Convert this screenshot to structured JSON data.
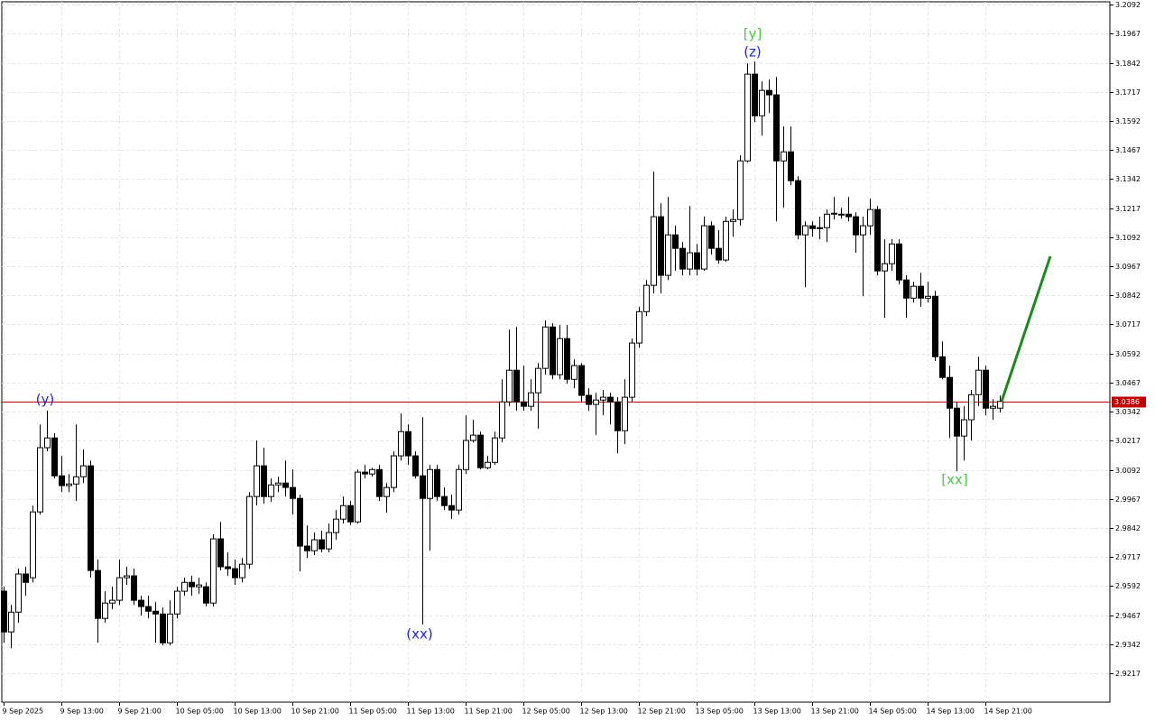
{
  "chart_data": {
    "type": "candlestick",
    "ylim": [
      2.9093,
      3.2104
    ],
    "yticks": [
      3.2092,
      3.1967,
      3.1842,
      3.1717,
      3.1592,
      3.1467,
      3.1342,
      3.1217,
      3.1092,
      3.0967,
      3.0842,
      3.0717,
      3.0592,
      3.0467,
      3.0342,
      3.0217,
      3.0092,
      2.9967,
      2.9842,
      2.9717,
      2.9592,
      2.9467,
      2.9342,
      2.9217
    ],
    "grid": true,
    "up_color": "#ffffff",
    "down_color": "#000000",
    "current_price": 3.0386,
    "current_price_color": "#c00000",
    "projection": {
      "values": [
        3.0386,
        3.101
      ],
      "color": "#1a8a1a"
    },
    "annotations": [
      {
        "text": "(y)",
        "color": "#2222dd"
      },
      {
        "text": "[y]",
        "color": "#44cc44"
      },
      {
        "text": "(z)",
        "color": "#2222dd"
      },
      {
        "text": "(xx)",
        "color": "#2222dd"
      },
      {
        "text": "[xx]",
        "color": "#44cc44"
      }
    ],
    "categories": [
      "9 Sep 2025",
      null,
      null,
      null,
      null,
      null,
      null,
      null,
      "9 Sep 13:00",
      null,
      null,
      null,
      null,
      null,
      null,
      null,
      "9 Sep 21:00",
      null,
      null,
      null,
      null,
      null,
      null,
      null,
      "10 Sep 05:00",
      null,
      null,
      null,
      null,
      null,
      null,
      null,
      "10 Sep 13:00",
      null,
      null,
      null,
      null,
      null,
      null,
      null,
      "10 Sep 21:00",
      null,
      null,
      null,
      null,
      null,
      null,
      null,
      "11 Sep 05:00",
      null,
      null,
      null,
      null,
      null,
      null,
      null,
      "11 Sep 13:00",
      null,
      null,
      null,
      null,
      null,
      null,
      null,
      "11 Sep 21:00",
      null,
      null,
      null,
      null,
      null,
      null,
      null,
      "12 Sep 05:00",
      null,
      null,
      null,
      null,
      null,
      null,
      null,
      "12 Sep 13:00",
      null,
      null,
      null,
      null,
      null,
      null,
      null,
      "12 Sep 21:00",
      null,
      null,
      null,
      null,
      null,
      null,
      null,
      "13 Sep 05:00",
      null,
      null,
      null,
      null,
      null,
      null,
      null,
      "13 Sep 13:00",
      null,
      null,
      null,
      null,
      null,
      null,
      null,
      "13 Sep 21:00",
      null,
      null,
      null,
      null,
      null,
      null,
      null,
      "14 Sep 05:00",
      null,
      null,
      null,
      null,
      null,
      null,
      null,
      "14 Sep 13:00",
      null,
      null,
      null,
      null,
      null,
      null,
      null,
      "14 Sep 21:00",
      null,
      null
    ],
    "ohlc": [
      [
        2.957,
        2.9589,
        2.9348,
        2.9395
      ],
      [
        2.9395,
        2.9511,
        2.9325,
        2.948
      ],
      [
        2.948,
        2.9667,
        2.9434,
        2.9644
      ],
      [
        2.9644,
        2.9675,
        2.955,
        2.9608
      ],
      [
        2.9628,
        2.9938,
        2.9608,
        2.9911
      ],
      [
        2.9911,
        3.0287,
        2.9899,
        3.0187
      ],
      [
        3.0187,
        3.0346,
        3.0171,
        3.0229
      ],
      [
        3.0229,
        3.0249,
        3.0055,
        3.0066
      ],
      [
        3.0066,
        3.0152,
        2.9996,
        3.0024
      ],
      [
        3.0024,
        3.0074,
        2.9996,
        3.0031
      ],
      [
        3.0031,
        3.0287,
        2.9958,
        3.0062
      ],
      [
        3.0062,
        3.0179,
        3.0035,
        3.0109
      ],
      [
        3.0109,
        3.0132,
        2.9628,
        2.9659
      ],
      [
        2.9659,
        2.9706,
        2.9348,
        2.9453
      ],
      [
        2.9453,
        2.957,
        2.9434,
        2.9519
      ],
      [
        2.9519,
        2.9589,
        2.9492,
        2.9531
      ],
      [
        2.9531,
        2.9706,
        2.9511,
        2.9628
      ],
      [
        2.9628,
        2.9675,
        2.9597,
        2.9636
      ],
      [
        2.9636,
        2.9667,
        2.9511,
        2.9531
      ],
      [
        2.9531,
        2.955,
        2.9465,
        2.9504
      ],
      [
        2.9504,
        2.955,
        2.9453,
        2.9484
      ],
      [
        2.9484,
        2.9523,
        2.9348,
        2.9472
      ],
      [
        2.9472,
        2.95,
        2.9337,
        2.9348
      ],
      [
        2.9348,
        2.9531,
        2.9337,
        2.9472
      ],
      [
        2.9472,
        2.9589,
        2.9453,
        2.957
      ],
      [
        2.957,
        2.9628,
        2.955,
        2.9608
      ],
      [
        2.9608,
        2.9636,
        2.955,
        2.9589
      ],
      [
        2.9589,
        2.9628,
        2.9558,
        2.9597
      ],
      [
        2.9589,
        2.9608,
        2.9504,
        2.9519
      ],
      [
        2.9519,
        2.9814,
        2.9504,
        2.9795
      ],
      [
        2.9795,
        2.9868,
        2.9659,
        2.9675
      ],
      [
        2.9675,
        2.9737,
        2.9636,
        2.9667
      ],
      [
        2.9667,
        2.9706,
        2.9597,
        2.9628
      ],
      [
        2.9628,
        2.9713,
        2.9608,
        2.9686
      ],
      [
        2.9686,
        2.9996,
        2.9667,
        2.9977
      ],
      [
        2.9977,
        3.0218,
        2.9938,
        3.0109
      ],
      [
        3.0109,
        3.0187,
        2.9946,
        2.9977
      ],
      [
        2.9977,
        3.0055,
        2.9954,
        3.0027
      ],
      [
        3.0027,
        3.0062,
        2.9996,
        3.0035
      ],
      [
        3.0035,
        3.0132,
        2.9977,
        3.0016
      ],
      [
        3.0016,
        3.0093,
        2.9899,
        2.9969
      ],
      [
        2.9969,
        2.9985,
        2.9655,
        2.9764
      ],
      [
        2.9764,
        2.9853,
        2.9713,
        2.9744
      ],
      [
        2.9744,
        2.9822,
        2.9725,
        2.9791
      ],
      [
        2.9791,
        2.983,
        2.9737,
        2.9752
      ],
      [
        2.9752,
        2.9861,
        2.9737,
        2.9822
      ],
      [
        2.9822,
        2.9919,
        2.9791,
        2.988
      ],
      [
        2.988,
        2.9977,
        2.9861,
        2.9938
      ],
      [
        2.9938,
        2.9958,
        2.9853,
        2.9868
      ],
      [
        2.9868,
        3.0093,
        2.9861,
        3.0082
      ],
      [
        3.0082,
        3.0113,
        3.0055,
        3.0074
      ],
      [
        3.0074,
        3.0101,
        3.0062,
        3.0093
      ],
      [
        3.0093,
        3.0113,
        2.9958,
        2.9977
      ],
      [
        2.9977,
        3.0035,
        2.9907,
        3.0016
      ],
      [
        3.0016,
        3.0171,
        2.9996,
        3.0152
      ],
      [
        3.0152,
        3.0334,
        3.0132,
        3.0256
      ],
      [
        3.0256,
        3.0287,
        3.0113,
        3.0152
      ],
      [
        3.0152,
        3.0171,
        3.0055,
        3.0066
      ],
      [
        3.0066,
        3.0318,
        2.9426,
        2.9969
      ],
      [
        2.9969,
        3.0113,
        2.9744,
        3.0093
      ],
      [
        3.0093,
        3.0113,
        2.9958,
        2.9977
      ],
      [
        2.9977,
        3.0016,
        2.9919,
        2.9938
      ],
      [
        2.9938,
        2.9985,
        2.988,
        2.9919
      ],
      [
        2.9919,
        3.0113,
        2.9899,
        3.0093
      ],
      [
        3.0093,
        3.0326,
        3.0074,
        3.0218
      ],
      [
        3.0218,
        3.0307,
        3.021,
        3.0241
      ],
      [
        3.0241,
        3.0256,
        3.0093,
        3.0101
      ],
      [
        3.0101,
        3.0152,
        3.0093,
        3.0124
      ],
      [
        3.0124,
        3.0256,
        3.0113,
        3.0229
      ],
      [
        3.0229,
        3.0481,
        3.021,
        3.0384
      ],
      [
        3.0384,
        3.0695,
        3.0365,
        3.052
      ],
      [
        3.052,
        3.0706,
        3.0346,
        3.0384
      ],
      [
        3.0384,
        3.054,
        3.0346,
        3.0365
      ],
      [
        3.0365,
        3.0481,
        3.0346,
        3.0423
      ],
      [
        3.0423,
        3.0551,
        3.0268,
        3.0528
      ],
      [
        3.0528,
        3.0734,
        3.0501,
        3.0706
      ],
      [
        3.0706,
        3.0722,
        3.0481,
        3.0501
      ],
      [
        3.0501,
        3.0714,
        3.0481,
        3.0656
      ],
      [
        3.0656,
        3.0714,
        3.0462,
        3.0481
      ],
      [
        3.0481,
        3.0567,
        3.0443,
        3.054
      ],
      [
        3.054,
        3.0551,
        3.0384,
        3.0412
      ],
      [
        3.0412,
        3.0443,
        3.0346,
        3.0373
      ],
      [
        3.0373,
        3.0423,
        3.0241,
        3.0392
      ],
      [
        3.0392,
        3.0435,
        3.0326,
        3.0404
      ],
      [
        3.0404,
        3.0423,
        3.0287,
        3.0384
      ],
      [
        3.0384,
        3.0404,
        3.0163,
        3.026
      ],
      [
        3.026,
        3.0481,
        3.0202,
        3.0404
      ],
      [
        3.0404,
        3.0656,
        3.0384,
        3.0637
      ],
      [
        3.0637,
        3.0792,
        3.0617,
        3.0772
      ],
      [
        3.0772,
        3.0908,
        3.0753,
        3.0885
      ],
      [
        3.0885,
        3.1374,
        3.085,
        3.118
      ],
      [
        3.118,
        3.1238,
        3.085,
        3.0928
      ],
      [
        3.0928,
        3.1265,
        3.0908,
        3.1102
      ],
      [
        3.1102,
        3.1141,
        3.0947,
        3.1044
      ],
      [
        3.1044,
        3.1071,
        3.0928,
        3.0955
      ],
      [
        3.0955,
        3.1226,
        3.0928,
        3.1025
      ],
      [
        3.1025,
        3.1063,
        3.0928,
        3.0955
      ],
      [
        3.0955,
        3.118,
        3.0947,
        3.1141
      ],
      [
        3.1141,
        3.116,
        3.1017,
        3.1044
      ],
      [
        3.1044,
        3.1122,
        3.0978,
        3.0994
      ],
      [
        3.0994,
        3.118,
        3.0986,
        3.116
      ],
      [
        3.116,
        3.1211,
        3.1094,
        3.1168
      ],
      [
        3.1168,
        3.1444,
        3.1141,
        3.142
      ],
      [
        3.142,
        3.1839,
        3.1413,
        3.1793
      ],
      [
        3.1793,
        3.1847,
        3.1587,
        3.1614
      ],
      [
        3.1614,
        3.1762,
        3.1529,
        3.1723
      ],
      [
        3.1723,
        3.177,
        3.1626,
        3.1704
      ],
      [
        3.1704,
        3.1781,
        3.116,
        3.142
      ],
      [
        3.142,
        3.1568,
        3.1219,
        3.1459
      ],
      [
        3.1459,
        3.1568,
        3.1316,
        3.1335
      ],
      [
        3.1335,
        3.1354,
        3.1083,
        3.1102
      ],
      [
        3.1102,
        3.116,
        3.0877,
        3.1141
      ],
      [
        3.1141,
        3.116,
        3.1094,
        3.1129
      ],
      [
        3.1129,
        3.118,
        3.1083,
        3.1133
      ],
      [
        3.1133,
        3.1211,
        3.1071,
        3.1191
      ],
      [
        3.1191,
        3.1265,
        3.1168,
        3.1195
      ],
      [
        3.1191,
        3.1218,
        3.1172,
        3.1188
      ],
      [
        3.1191,
        3.1265,
        3.116,
        3.118
      ],
      [
        3.118,
        3.1199,
        3.1025,
        3.1102
      ],
      [
        3.1102,
        3.118,
        3.0838,
        3.1141
      ],
      [
        3.1141,
        3.1257,
        3.1102,
        3.1211
      ],
      [
        3.1211,
        3.1226,
        3.0928,
        3.0947
      ],
      [
        3.0947,
        3.1083,
        3.0745,
        3.0978
      ],
      [
        3.0978,
        3.1083,
        3.0947,
        3.1063
      ],
      [
        3.1063,
        3.1083,
        3.0889,
        3.0908
      ],
      [
        3.0908,
        3.0928,
        3.0745,
        3.083
      ],
      [
        3.083,
        3.09,
        3.0811,
        3.0881
      ],
      [
        3.0881,
        3.0939,
        3.0792,
        3.083
      ],
      [
        3.083,
        3.09,
        3.0811,
        3.0838
      ],
      [
        3.0838,
        3.0862,
        3.0559,
        3.0578
      ],
      [
        3.0578,
        3.0644,
        3.0481,
        3.0489
      ],
      [
        3.0489,
        3.054,
        3.0229,
        3.0357
      ],
      [
        3.0357,
        3.0384,
        3.0086,
        3.0237
      ],
      [
        3.0237,
        3.0365,
        3.0132,
        3.0307
      ],
      [
        3.0307,
        3.0435,
        3.0218,
        3.0415
      ],
      [
        3.0415,
        3.0578,
        3.0365,
        3.052
      ],
      [
        3.052,
        3.054,
        3.0326,
        3.0357
      ],
      [
        3.0357,
        3.0396,
        3.0307,
        3.0365
      ],
      [
        3.0357,
        3.0412,
        3.0338,
        3.0386
      ]
    ]
  }
}
